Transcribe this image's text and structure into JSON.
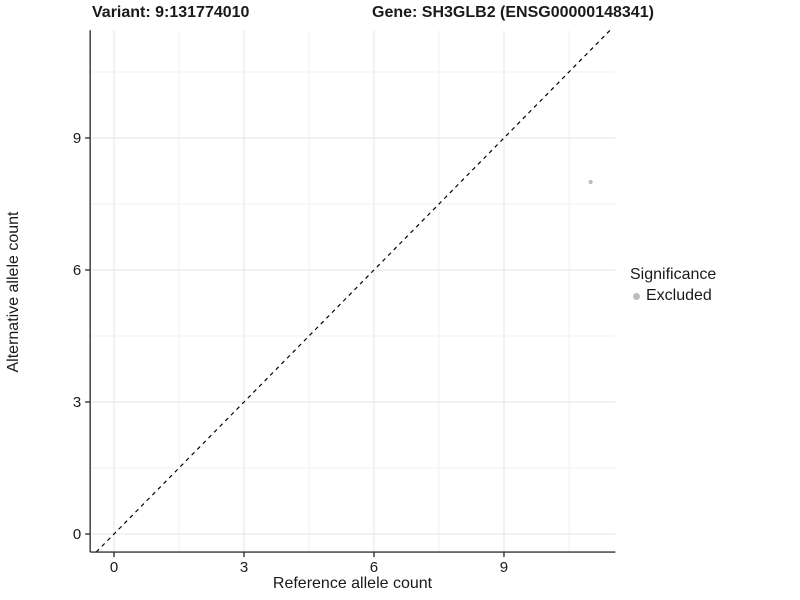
{
  "header": {
    "title_left": "Variant: 9:131774010",
    "title_right": "Gene: SH3GLB2 (ENSG00000148341)"
  },
  "legend": {
    "title": "Significance",
    "entries": [
      {
        "label": "Excluded",
        "color": "#bdbdbd"
      }
    ]
  },
  "chart_data": {
    "type": "scatter",
    "title": "Variant: 9:131774010  |  Gene: SH3GLB2 (ENSG00000148341)",
    "xlabel": "Reference allele count",
    "ylabel": "Alternative allele count",
    "x_ticks": [
      0,
      3,
      6,
      9
    ],
    "y_ticks": [
      0,
      3,
      6,
      9
    ],
    "xlim": [
      -0.55,
      11.57
    ],
    "ylim": [
      -0.41,
      11.45
    ],
    "grid": true,
    "legend_position": "right",
    "points": [
      {
        "x": 11,
        "y": 8,
        "significance": "Excluded",
        "color": "#bdbdbd"
      }
    ],
    "reference_line": {
      "kind": "diagonal y=x",
      "style": "dashed",
      "color": "#000000"
    },
    "colors": {
      "background": "#ffffff",
      "grid_major": "#e6e6e6",
      "grid_minor": "#f2f2f2",
      "axis_line": "#333333",
      "tick_mark": "#333333",
      "tick_text": "#1a1a1a",
      "point": "#bdbdbd"
    },
    "tick_font_px": 15
  }
}
